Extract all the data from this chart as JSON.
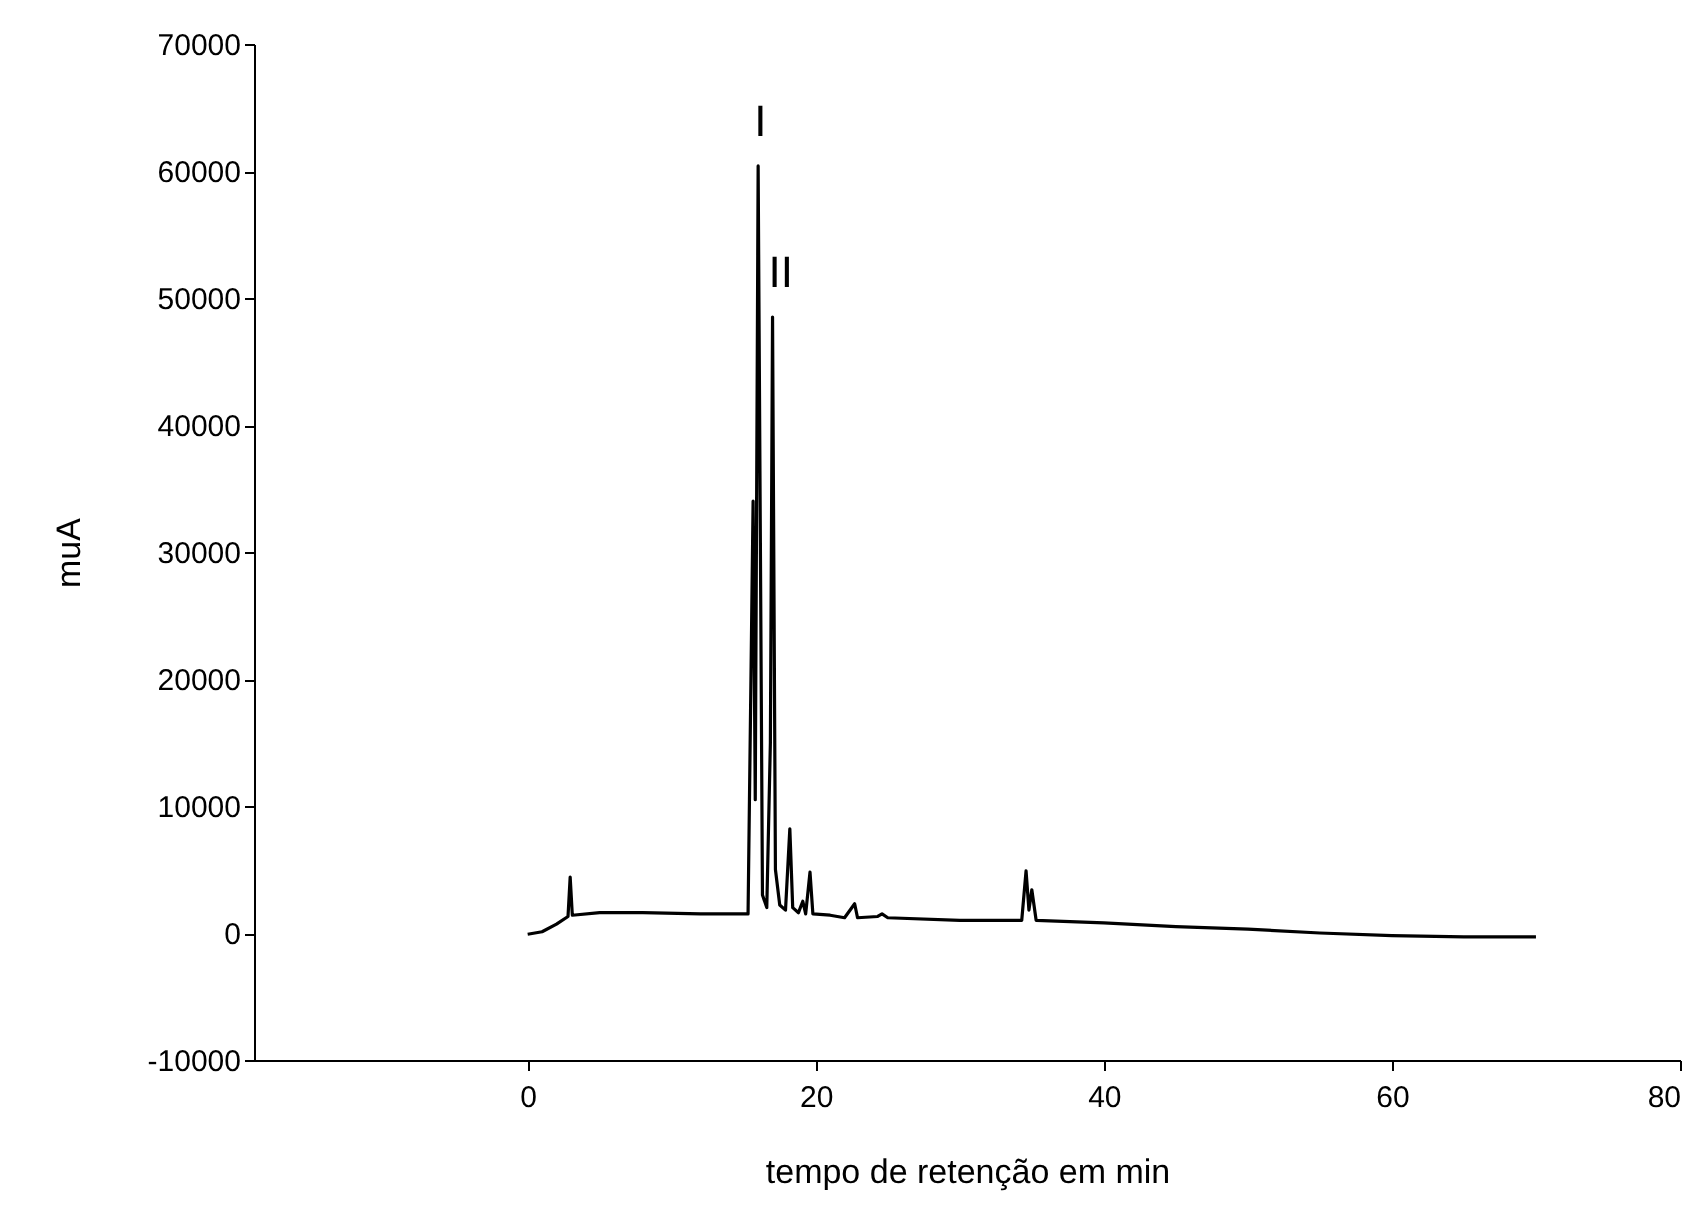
{
  "chart_data": {
    "type": "line",
    "xlabel": "tempo de retenção em min",
    "ylabel": "muA",
    "x": [
      0,
      1,
      2,
      2.8,
      2.95,
      3.1,
      5,
      8,
      12,
      15.3,
      15.5,
      15.65,
      15.8,
      16.0,
      16.3,
      16.6,
      16.85,
      17.0,
      17.2,
      17.5,
      17.9,
      18.2,
      18.4,
      18.8,
      19.1,
      19.3,
      19.6,
      19.8,
      21,
      22,
      22.7,
      22.9,
      24.3,
      24.6,
      25,
      30,
      34.3,
      34.6,
      34.8,
      35.0,
      35.3,
      40,
      45,
      50,
      55,
      60,
      65,
      70
    ],
    "series": [
      {
        "color": "#000000",
        "values": [
          -100,
          100,
          700,
          1300,
          4400,
          1400,
          1600,
          1600,
          1500,
          1500,
          20000,
          34000,
          10500,
          60400,
          3000,
          2000,
          15000,
          48500,
          5000,
          2200,
          1800,
          8200,
          2000,
          1600,
          2500,
          1500,
          4800,
          1500,
          1400,
          1200,
          2300,
          1200,
          1300,
          1500,
          1200,
          1000,
          1000,
          4900,
          1800,
          3400,
          1000,
          800,
          500,
          300,
          0,
          -200,
          -300,
          -300
        ]
      }
    ],
    "xlim": [
      -19,
      80
    ],
    "xticks": [
      0,
      20,
      40,
      60,
      80
    ],
    "ylim": [
      -10000,
      70000
    ],
    "yticks": [
      -10000,
      0,
      10000,
      20000,
      30000,
      40000,
      50000,
      60000,
      70000
    ],
    "grid": false,
    "marker": "none",
    "line_style": "solid",
    "annotations": [
      {
        "text": "I",
        "x": 16.0,
        "y": 60400
      },
      {
        "text": "II",
        "x": 17.0,
        "y": 48500
      }
    ]
  }
}
